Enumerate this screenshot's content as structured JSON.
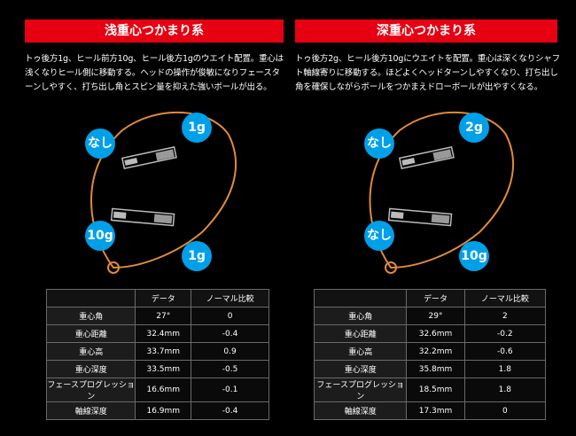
{
  "left": {
    "title": "浅重心つかまり系",
    "description": "トゥ後方1g、ヒール前方10g、ヒール後方1gのウエイト配置。重心は浅くなりヒール側に移動する。ヘッドの操作が俊敏になりフェースターンしやすく、打ち出し角とスピン量を抑えた強いボールが出る。",
    "badges": {
      "top_left": "なし",
      "top_right": "1g",
      "bottom_left": "10g",
      "bottom_right": "1g"
    },
    "table": {
      "headers": [
        "",
        "データ",
        "ノーマル比較"
      ],
      "rows": [
        [
          "重心角",
          "27°",
          "0"
        ],
        [
          "重心距離",
          "32.4mm",
          "-0.4"
        ],
        [
          "重心高",
          "33.7mm",
          "0.9"
        ],
        [
          "重心深度",
          "33.5mm",
          "-0.5"
        ],
        [
          "フェースプログレッション",
          "16.6mm",
          "-0.1"
        ],
        [
          "軸線深度",
          "16.9mm",
          "-0.4"
        ]
      ]
    }
  },
  "right": {
    "title": "深重心つかまり系",
    "description": "トゥ後方2g、ヒール後方10gにウエイトを配置。重心は深くなりシャフト軸線寄りに移動する。ほどよくヘッドターンしやすくなり、打ち出し角を確保しながらボールをつかまえドローボールが出やすくなる。",
    "badges": {
      "top_left": "なし",
      "top_right": "2g",
      "bottom_left": "なし",
      "bottom_right": "10g"
    },
    "table": {
      "headers": [
        "",
        "データ",
        "ノーマル比較"
      ],
      "rows": [
        [
          "重心角",
          "29°",
          "2"
        ],
        [
          "重心距離",
          "32.6mm",
          "-0.2"
        ],
        [
          "重心高",
          "32.2mm",
          "-0.6"
        ],
        [
          "重心深度",
          "35.8mm",
          "1.8"
        ],
        [
          "フェースプログレッション",
          "18.5mm",
          "1.8"
        ],
        [
          "軸線深度",
          "17.3mm",
          "0"
        ]
      ]
    }
  },
  "colors": {
    "title_bg": "#e60012",
    "badge": "#00a0e9",
    "outline": "#e08a3a"
  }
}
